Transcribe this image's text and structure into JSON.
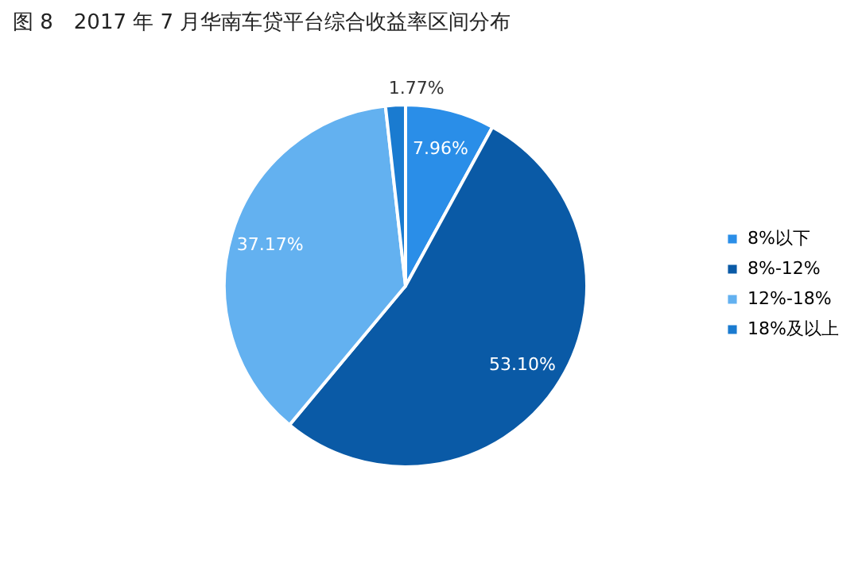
{
  "chart_data": {
    "type": "pie",
    "title": "图 8　2017 年 7 月华南车贷平台综合收益率区间分布",
    "categories": [
      "8%以下",
      "8%-12%",
      "12%-18%",
      "18%及以上"
    ],
    "values": [
      7.96,
      53.1,
      37.17,
      1.77
    ],
    "colors": [
      "#2a8ee8",
      "#0a5aa6",
      "#63b1f0",
      "#1a7bd0"
    ],
    "value_labels": [
      "7.96%",
      "53.10%",
      "37.17%",
      "1.77%"
    ],
    "legend": "right"
  }
}
